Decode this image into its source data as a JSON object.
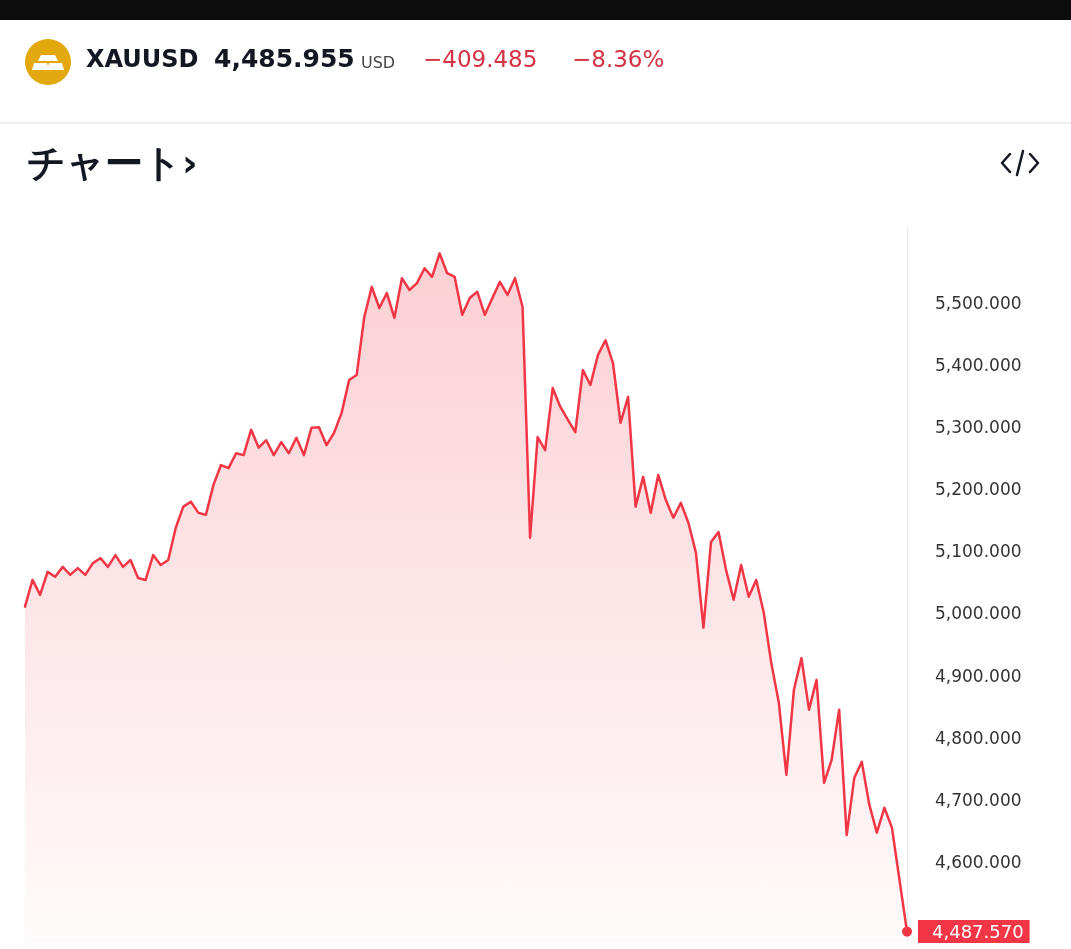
{
  "chart_data": {
    "type": "area",
    "title": "XAUUSD",
    "subtitle": "チャート›",
    "annotations": [
      "4,485.955",
      "USD",
      "−409.485",
      "−8.36%"
    ],
    "categories": [
      null,
      null,
      null,
      null,
      null,
      null,
      null,
      null,
      null,
      null,
      null,
      null,
      null,
      null,
      null,
      null,
      null,
      null,
      null,
      null,
      null,
      null,
      null,
      null,
      null,
      null,
      null,
      null,
      null,
      null,
      null,
      null,
      null,
      null,
      null,
      null,
      null,
      null,
      null,
      null,
      null,
      null,
      null,
      null,
      null,
      null,
      null,
      null,
      null,
      null,
      null,
      null,
      null,
      null,
      null,
      null,
      null,
      null,
      null,
      null,
      null,
      null,
      null,
      null,
      null,
      null,
      null,
      null,
      null,
      null,
      null,
      null,
      null,
      null,
      null,
      null,
      null,
      null,
      null,
      null,
      null,
      null,
      null,
      null,
      null,
      null,
      null,
      null,
      null,
      null,
      null,
      null,
      null,
      null,
      null,
      null,
      null,
      null,
      null,
      null,
      null,
      null,
      null,
      null,
      null,
      null,
      null,
      null,
      null,
      null,
      null,
      null,
      null,
      null,
      null,
      null,
      null,
      null
    ],
    "series": [
      {
        "color": "#f23645",
        "values": [
          5011,
          5054,
          5030,
          5067,
          5059,
          5075,
          5062,
          5073,
          5062,
          5081,
          5089,
          5075,
          5094,
          5075,
          5086,
          5057,
          5054,
          5094,
          5078,
          5086,
          5138,
          5172,
          5180,
          5162,
          5159,
          5207,
          5239,
          5234,
          5258,
          5255,
          5296,
          5267,
          5279,
          5255,
          5276,
          5258,
          5283,
          5255,
          5299,
          5300,
          5271,
          5291,
          5323,
          5376,
          5384,
          5477,
          5526,
          5492,
          5516,
          5476,
          5540,
          5521,
          5532,
          5556,
          5542,
          5580,
          5548,
          5542,
          5481,
          5508,
          5518,
          5481,
          5508,
          5534,
          5513,
          5540,
          5494,
          5122,
          5284,
          5263,
          5363,
          5333,
          5312,
          5292,
          5392,
          5368,
          5416,
          5440,
          5403,
          5307,
          5349,
          5172,
          5220,
          5162,
          5223,
          5183,
          5154,
          5178,
          5146,
          5098,
          4977,
          5115,
          5131,
          5070,
          5022,
          5078,
          5027,
          5054,
          5001,
          4920,
          4856,
          4740,
          4877,
          4928,
          4845,
          4893,
          4727,
          4764,
          4845,
          4643,
          4735,
          4761,
          4692,
          4647,
          4687,
          4655,
          4571,
          4487.57
        ],
        "value_labels": [
          null,
          null,
          null,
          null,
          null,
          null,
          null,
          null,
          null,
          null,
          null,
          null,
          null,
          null,
          null,
          null,
          null,
          null,
          null,
          null,
          null,
          null,
          null,
          null,
          null,
          null,
          null,
          null,
          null,
          null,
          null,
          null,
          null,
          null,
          null,
          null,
          null,
          null,
          null,
          null,
          null,
          null,
          null,
          null,
          null,
          null,
          null,
          null,
          null,
          null,
          null,
          null,
          null,
          null,
          null,
          null,
          null,
          null,
          null,
          null,
          null,
          null,
          null,
          null,
          null,
          null,
          null,
          null,
          null,
          null,
          null,
          null,
          null,
          null,
          null,
          null,
          null,
          null,
          null,
          null,
          null,
          null,
          null,
          null,
          null,
          null,
          null,
          null,
          null,
          null,
          null,
          null,
          null,
          null,
          null,
          null,
          null,
          null,
          null,
          null,
          null,
          null,
          null,
          null,
          null,
          null,
          null,
          null,
          null,
          null,
          null,
          null,
          null,
          null,
          null,
          null,
          null,
          "4,487.570"
        ]
      }
    ],
    "ylim": [
      4470,
      5620
    ],
    "yticks": [
      {
        "value": 4600,
        "label": "4,600.000"
      },
      {
        "value": 4700,
        "label": "4,700.000"
      },
      {
        "value": 4800,
        "label": "4,800.000"
      },
      {
        "value": 4900,
        "label": "4,900.000"
      },
      {
        "value": 5000,
        "label": "5,000.000"
      },
      {
        "value": 5100,
        "label": "5,100.000"
      },
      {
        "value": 5200,
        "label": "5,200.000"
      },
      {
        "value": 5300,
        "label": "5,300.000"
      },
      {
        "value": 5400,
        "label": "5,400.000"
      },
      {
        "value": 5500,
        "label": "5,500.000"
      }
    ],
    "tick_labels": "y",
    "grid": false,
    "marker": "none",
    "line_style": "solid"
  }
}
